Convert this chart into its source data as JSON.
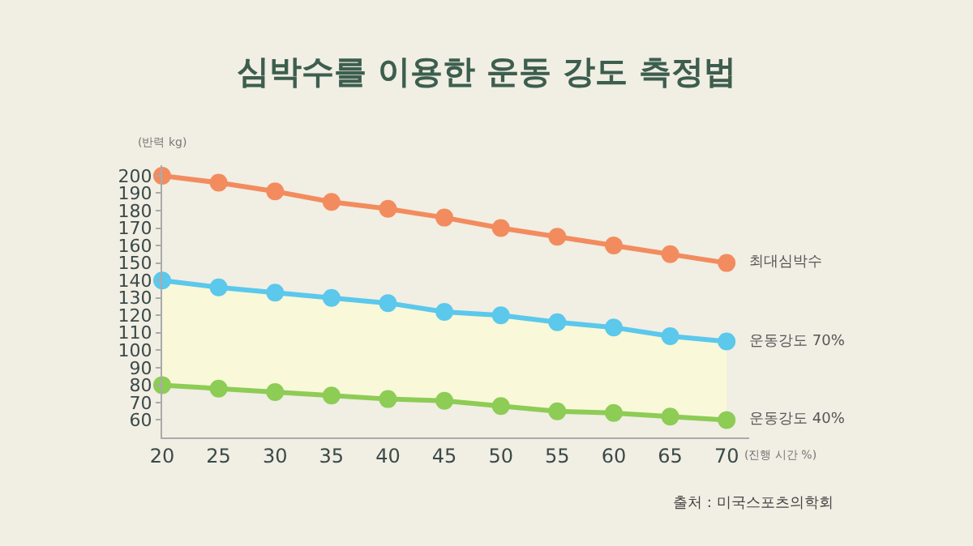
{
  "chart_data": {
    "type": "line",
    "title": "심박수를 이용한 운동 강도 측정법",
    "ylabel": "(반력 kg)",
    "xlabel": "(진행 시간 %)",
    "x": [
      20,
      25,
      30,
      35,
      40,
      45,
      50,
      55,
      60,
      65,
      70
    ],
    "series": [
      {
        "name": "최대심박수",
        "color": "#f28c5e",
        "values": [
          200,
          196,
          191,
          185,
          181,
          176,
          170,
          165,
          160,
          155,
          150
        ]
      },
      {
        "name": "운동강도 70%",
        "color": "#5bc8ec",
        "values": [
          140,
          136,
          133,
          130,
          127,
          122,
          120,
          116,
          113,
          108,
          105
        ],
        "lower": [
          80,
          78,
          76,
          74,
          72,
          71,
          68,
          65,
          64,
          62,
          60
        ],
        "upper": [
          140,
          136,
          133,
          130,
          127,
          122,
          120,
          116,
          113,
          108,
          105
        ]
      },
      {
        "name": "운동강도 40%",
        "color": "#8dcc55",
        "values": [
          80,
          78,
          76,
          74,
          72,
          71,
          68,
          65,
          64,
          62,
          60
        ]
      }
    ],
    "xlim": [
      20,
      72
    ],
    "ylim": [
      50,
      206
    ],
    "xticks": [
      20,
      25,
      30,
      35,
      40,
      45,
      50,
      55,
      60,
      65,
      70
    ],
    "yticks": [
      60,
      70,
      80,
      90,
      100,
      110,
      120,
      130,
      140,
      150,
      160,
      170,
      180,
      190,
      200
    ],
    "grid": false,
    "legend": false,
    "marker": "circle",
    "line_style": "solid",
    "annotations": [
      "출처 : 미국스포츠의학회"
    ]
  }
}
